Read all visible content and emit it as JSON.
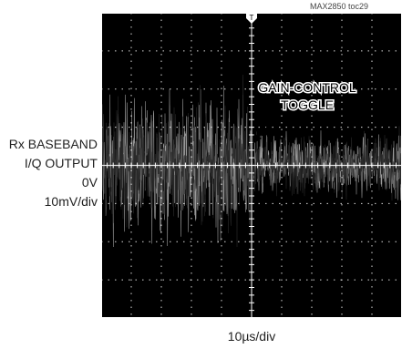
{
  "chart_data": {
    "type": "line",
    "figure_id": "MAX2850 toc29",
    "xlabel": "10µs/div",
    "ylabel_lines": [
      "Rx BASEBAND",
      "I/Q OUTPUT",
      "0V",
      "10mV/div"
    ],
    "annotation": [
      "GAIN-CONTROL",
      "TOGGLE"
    ],
    "x_divisions": 10,
    "y_divisions": 8,
    "x_per_div_us": 10,
    "y_per_div_mV": 10,
    "gain_toggle_time_us": 50,
    "grid": true,
    "series": [
      {
        "color": "#2a2a2a",
        "offset_mV": 0,
        "segments": [
          {
            "t_start_us": 0,
            "t_end_us": 50,
            "peak_mV": 20
          },
          {
            "t_start_us": 50,
            "t_end_us": 100,
            "peak_mV": 9
          }
        ]
      },
      {
        "color": "#9a9a9a",
        "offset_mV": 0,
        "segments": [
          {
            "t_start_us": 0,
            "t_end_us": 50,
            "peak_mV": 20
          },
          {
            "t_start_us": 50,
            "t_end_us": 100,
            "peak_mV": 9
          }
        ]
      }
    ],
    "colors": {
      "background": "#000000",
      "grid": "#ffffff",
      "trace_i": "#2a2a2a",
      "trace_q": "#9a9a9a"
    }
  }
}
